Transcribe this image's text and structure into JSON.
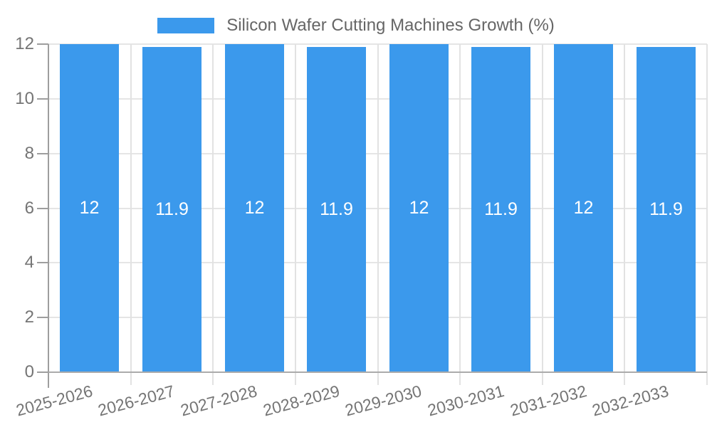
{
  "legend": {
    "label": "Silicon Wafer Cutting Machines Growth (%)",
    "swatch_color": "#3b99ec"
  },
  "chart_data": {
    "type": "bar",
    "title": "Silicon Wafer Cutting Machines Growth (%)",
    "categories": [
      "2025-2026",
      "2026-2027",
      "2027-2028",
      "2028-2029",
      "2029-2030",
      "2030-2031",
      "2031-2032",
      "2032-2033"
    ],
    "values": [
      12,
      11.9,
      12,
      11.9,
      12,
      11.9,
      12,
      11.9
    ],
    "bar_labels": [
      "12",
      "11.9",
      "12",
      "11.9",
      "12",
      "11.9",
      "12",
      "11.9"
    ],
    "xlabel": "",
    "ylabel": "",
    "ylim": [
      0,
      12
    ],
    "yticks": [
      0,
      2,
      4,
      6,
      8,
      10,
      12
    ],
    "grid": true,
    "legend_position": "top",
    "bar_color": "#3b99ec",
    "bar_label_color": "#ffffff"
  }
}
